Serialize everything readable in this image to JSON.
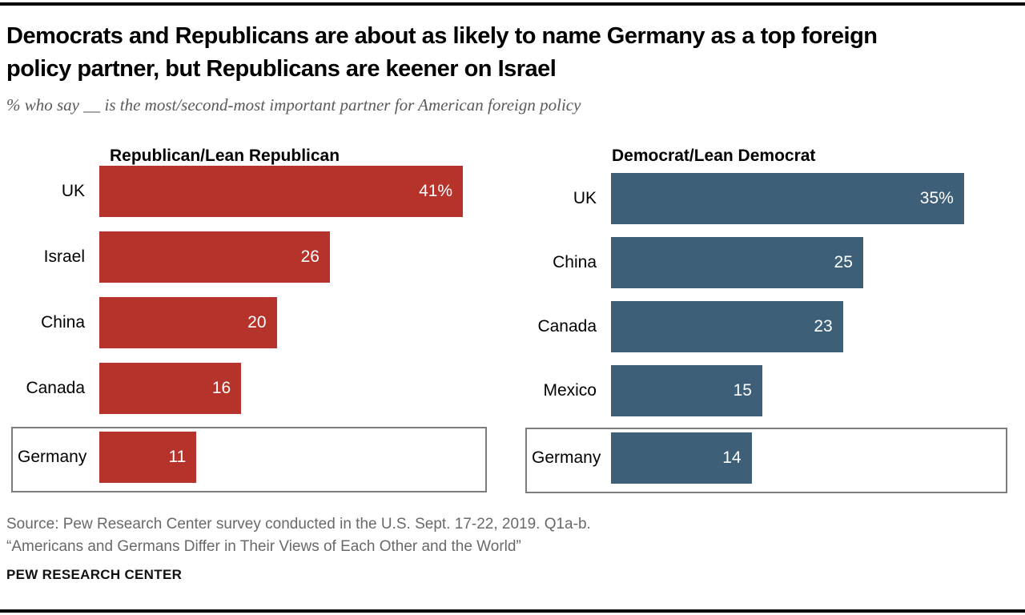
{
  "header": {
    "title_line1": "Democrats and Republicans are about as likely to name Germany as a top foreign",
    "title_line2": "policy partner, but Republicans are keener on Israel",
    "subtitle": "% who say __ is the most/second-most important partner for American foreign policy"
  },
  "chart_data": [
    {
      "type": "bar",
      "orientation": "horizontal",
      "title": "Republican/Lean Republican",
      "categories": [
        "UK",
        "Israel",
        "China",
        "Canada",
        "Germany"
      ],
      "values": [
        41,
        26,
        20,
        16,
        11
      ],
      "value_labels": [
        "41%",
        "26",
        "20",
        "16",
        "11"
      ],
      "color": "#b5332a",
      "xlim": [
        0,
        43.7
      ],
      "grid": false,
      "legend": "none",
      "highlighted_category": "Germany"
    },
    {
      "type": "bar",
      "orientation": "horizontal",
      "title": "Democrat/Lean Democrat",
      "categories": [
        "UK",
        "China",
        "Canada",
        "Mexico",
        "Germany"
      ],
      "values": [
        35,
        25,
        23,
        15,
        14
      ],
      "value_labels": [
        "35%",
        "25",
        "23",
        "15",
        "14"
      ],
      "color": "#3d6078",
      "xlim": [
        0,
        39.3
      ],
      "grid": false,
      "legend": "none",
      "highlighted_category": "Germany"
    }
  ],
  "footer": {
    "source_line1": "Source: Pew Research Center survey conducted in the U.S. Sept. 17-22, 2019. Q1a-b.",
    "source_line2": "“Americans and Germans Differ in Their Views of Each Other and the World”",
    "brand": "PEW RESEARCH CENTER"
  },
  "colors": {
    "republican_red": "#b5332a",
    "democrat_blue": "#3d6078",
    "highlight_border": "#7d7d7d",
    "subtitle_gray": "#5a5a5a",
    "source_gray": "#696969"
  }
}
